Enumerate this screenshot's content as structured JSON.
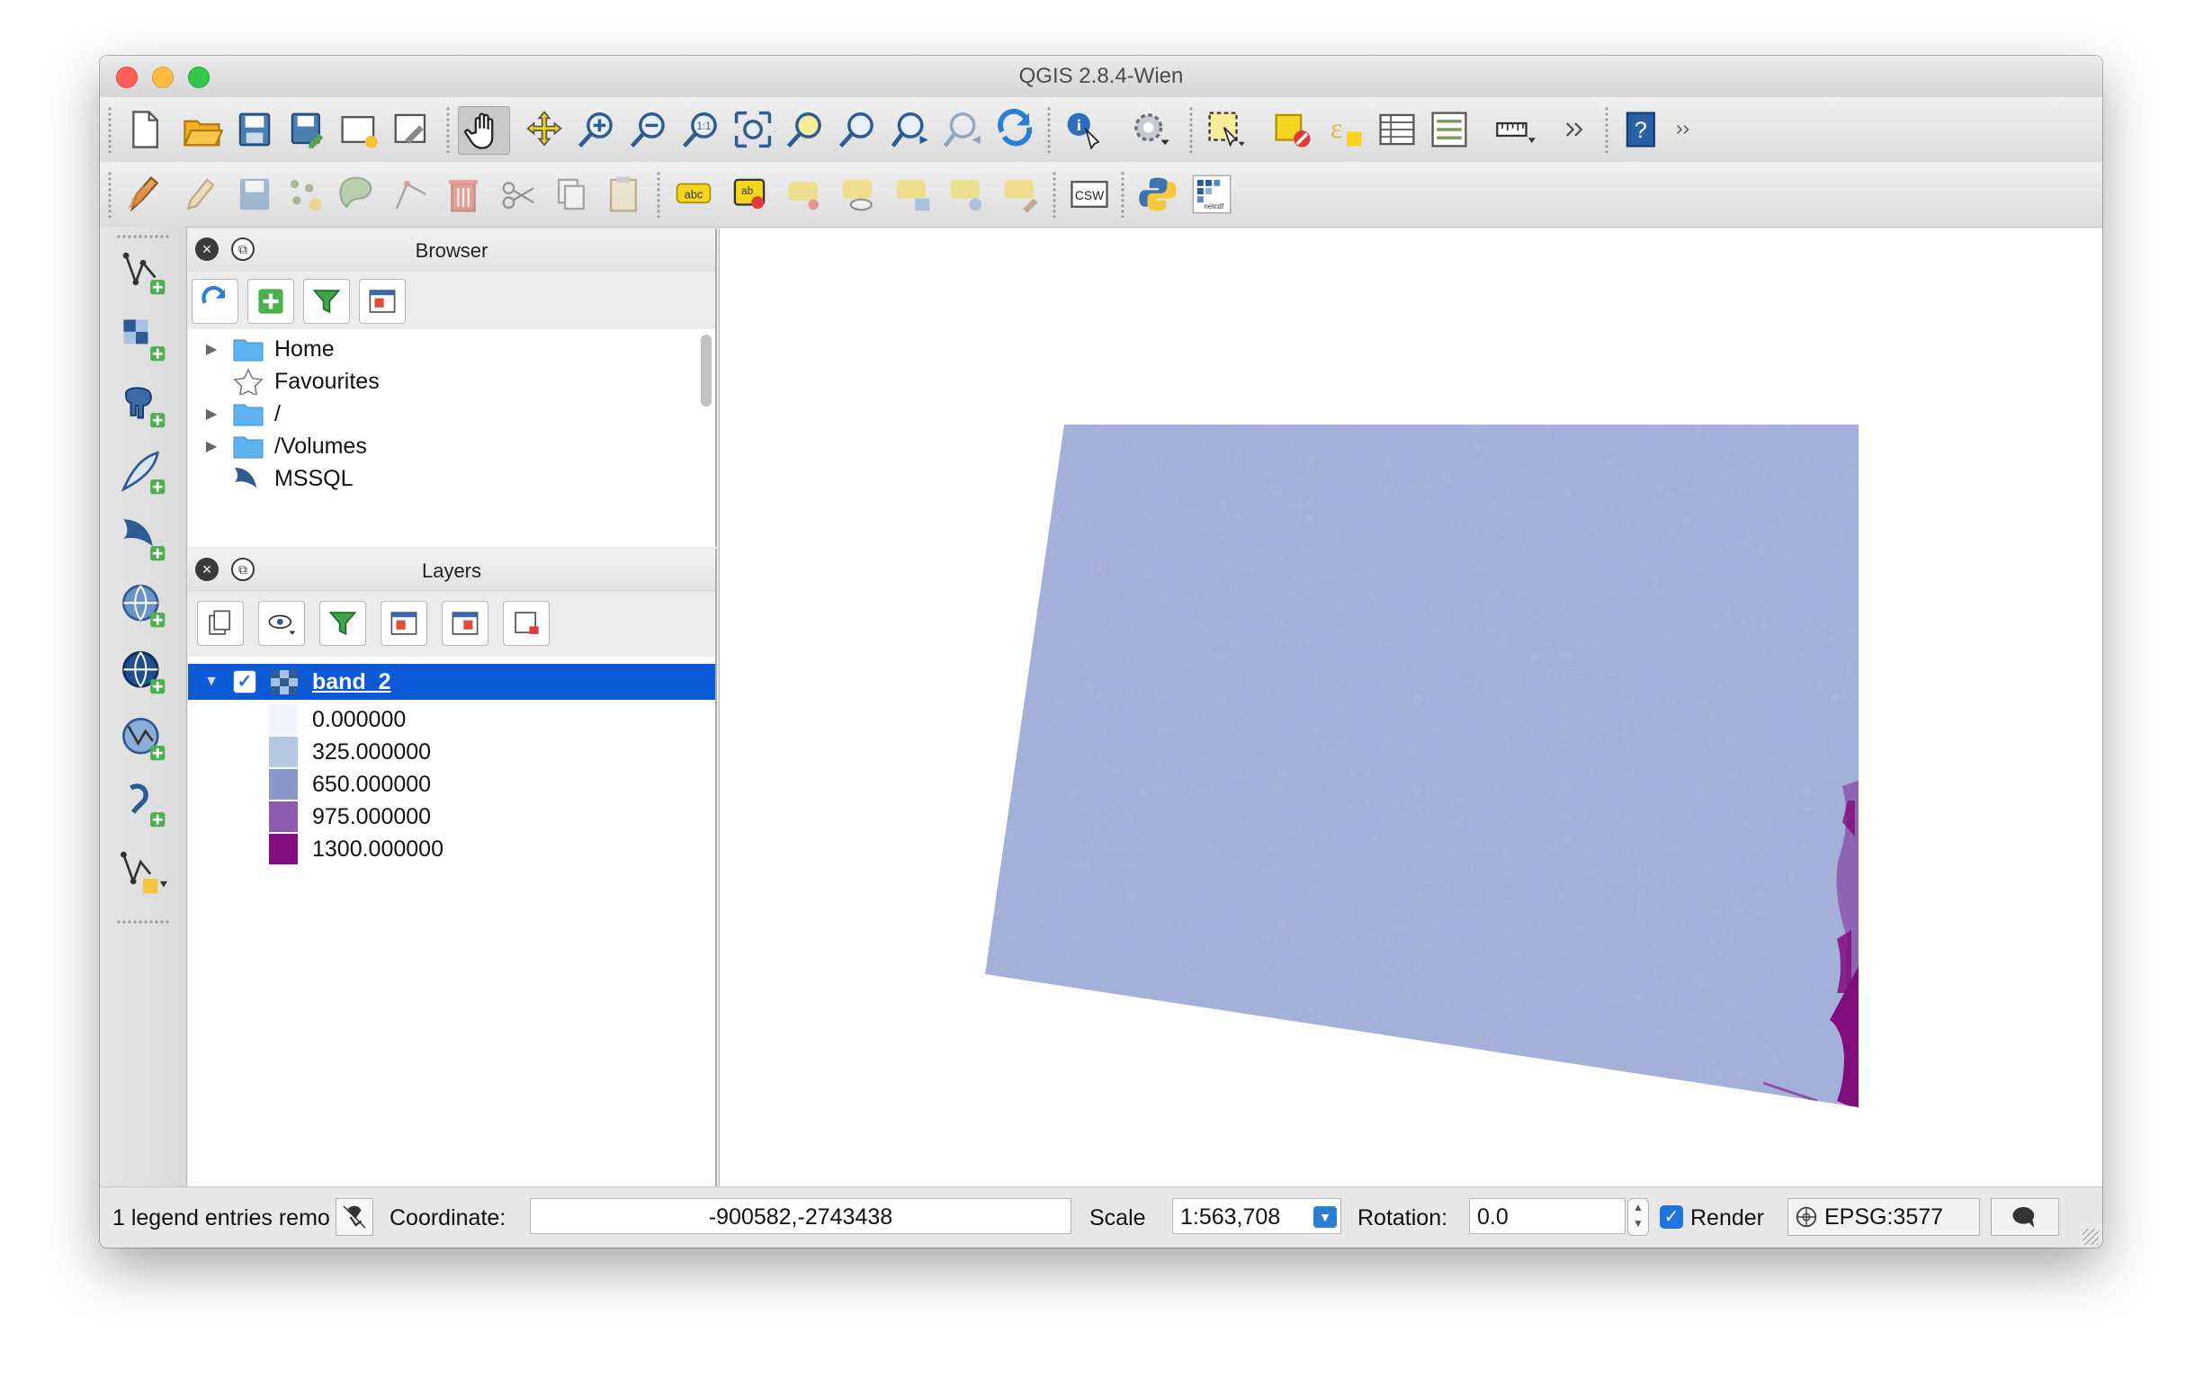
{
  "window": {
    "title": "QGIS 2.8.4-Wien"
  },
  "browser": {
    "title": "Browser",
    "items": [
      {
        "label": "Home",
        "icon": "folder-icon",
        "expandable": true
      },
      {
        "label": "Favourites",
        "icon": "star-icon",
        "expandable": false
      },
      {
        "label": "/",
        "icon": "folder-icon",
        "expandable": true
      },
      {
        "label": "/Volumes",
        "icon": "folder-icon",
        "expandable": true
      },
      {
        "label": "MSSQL",
        "icon": "mssql-icon",
        "expandable": false
      }
    ]
  },
  "layers": {
    "title": "Layers",
    "layer": {
      "name": "band_2",
      "visible": true,
      "expanded": true
    },
    "legend": [
      {
        "label": "0.000000",
        "color": "#f1f4fa"
      },
      {
        "label": "325.000000",
        "color": "#b6c8e2"
      },
      {
        "label": "650.000000",
        "color": "#8c97c9"
      },
      {
        "label": "975.000000",
        "color": "#8c5bad"
      },
      {
        "label": "1300.000000",
        "color": "#810c7d"
      }
    ]
  },
  "statusbar": {
    "message": "1 legend entries remo",
    "coordinate_label": "Coordinate:",
    "coordinate_value": "-900582,-2743438",
    "scale_label": "Scale",
    "scale_value": "1:563,708",
    "rotation_label": "Rotation:",
    "rotation_value": "0.0",
    "render_label": "Render",
    "render_checked": true,
    "crs": "EPSG:3577"
  },
  "colors": {
    "selection": "#0c5ad6",
    "raster_base": "#a3b1d8",
    "raster_high": "#810c7d"
  }
}
